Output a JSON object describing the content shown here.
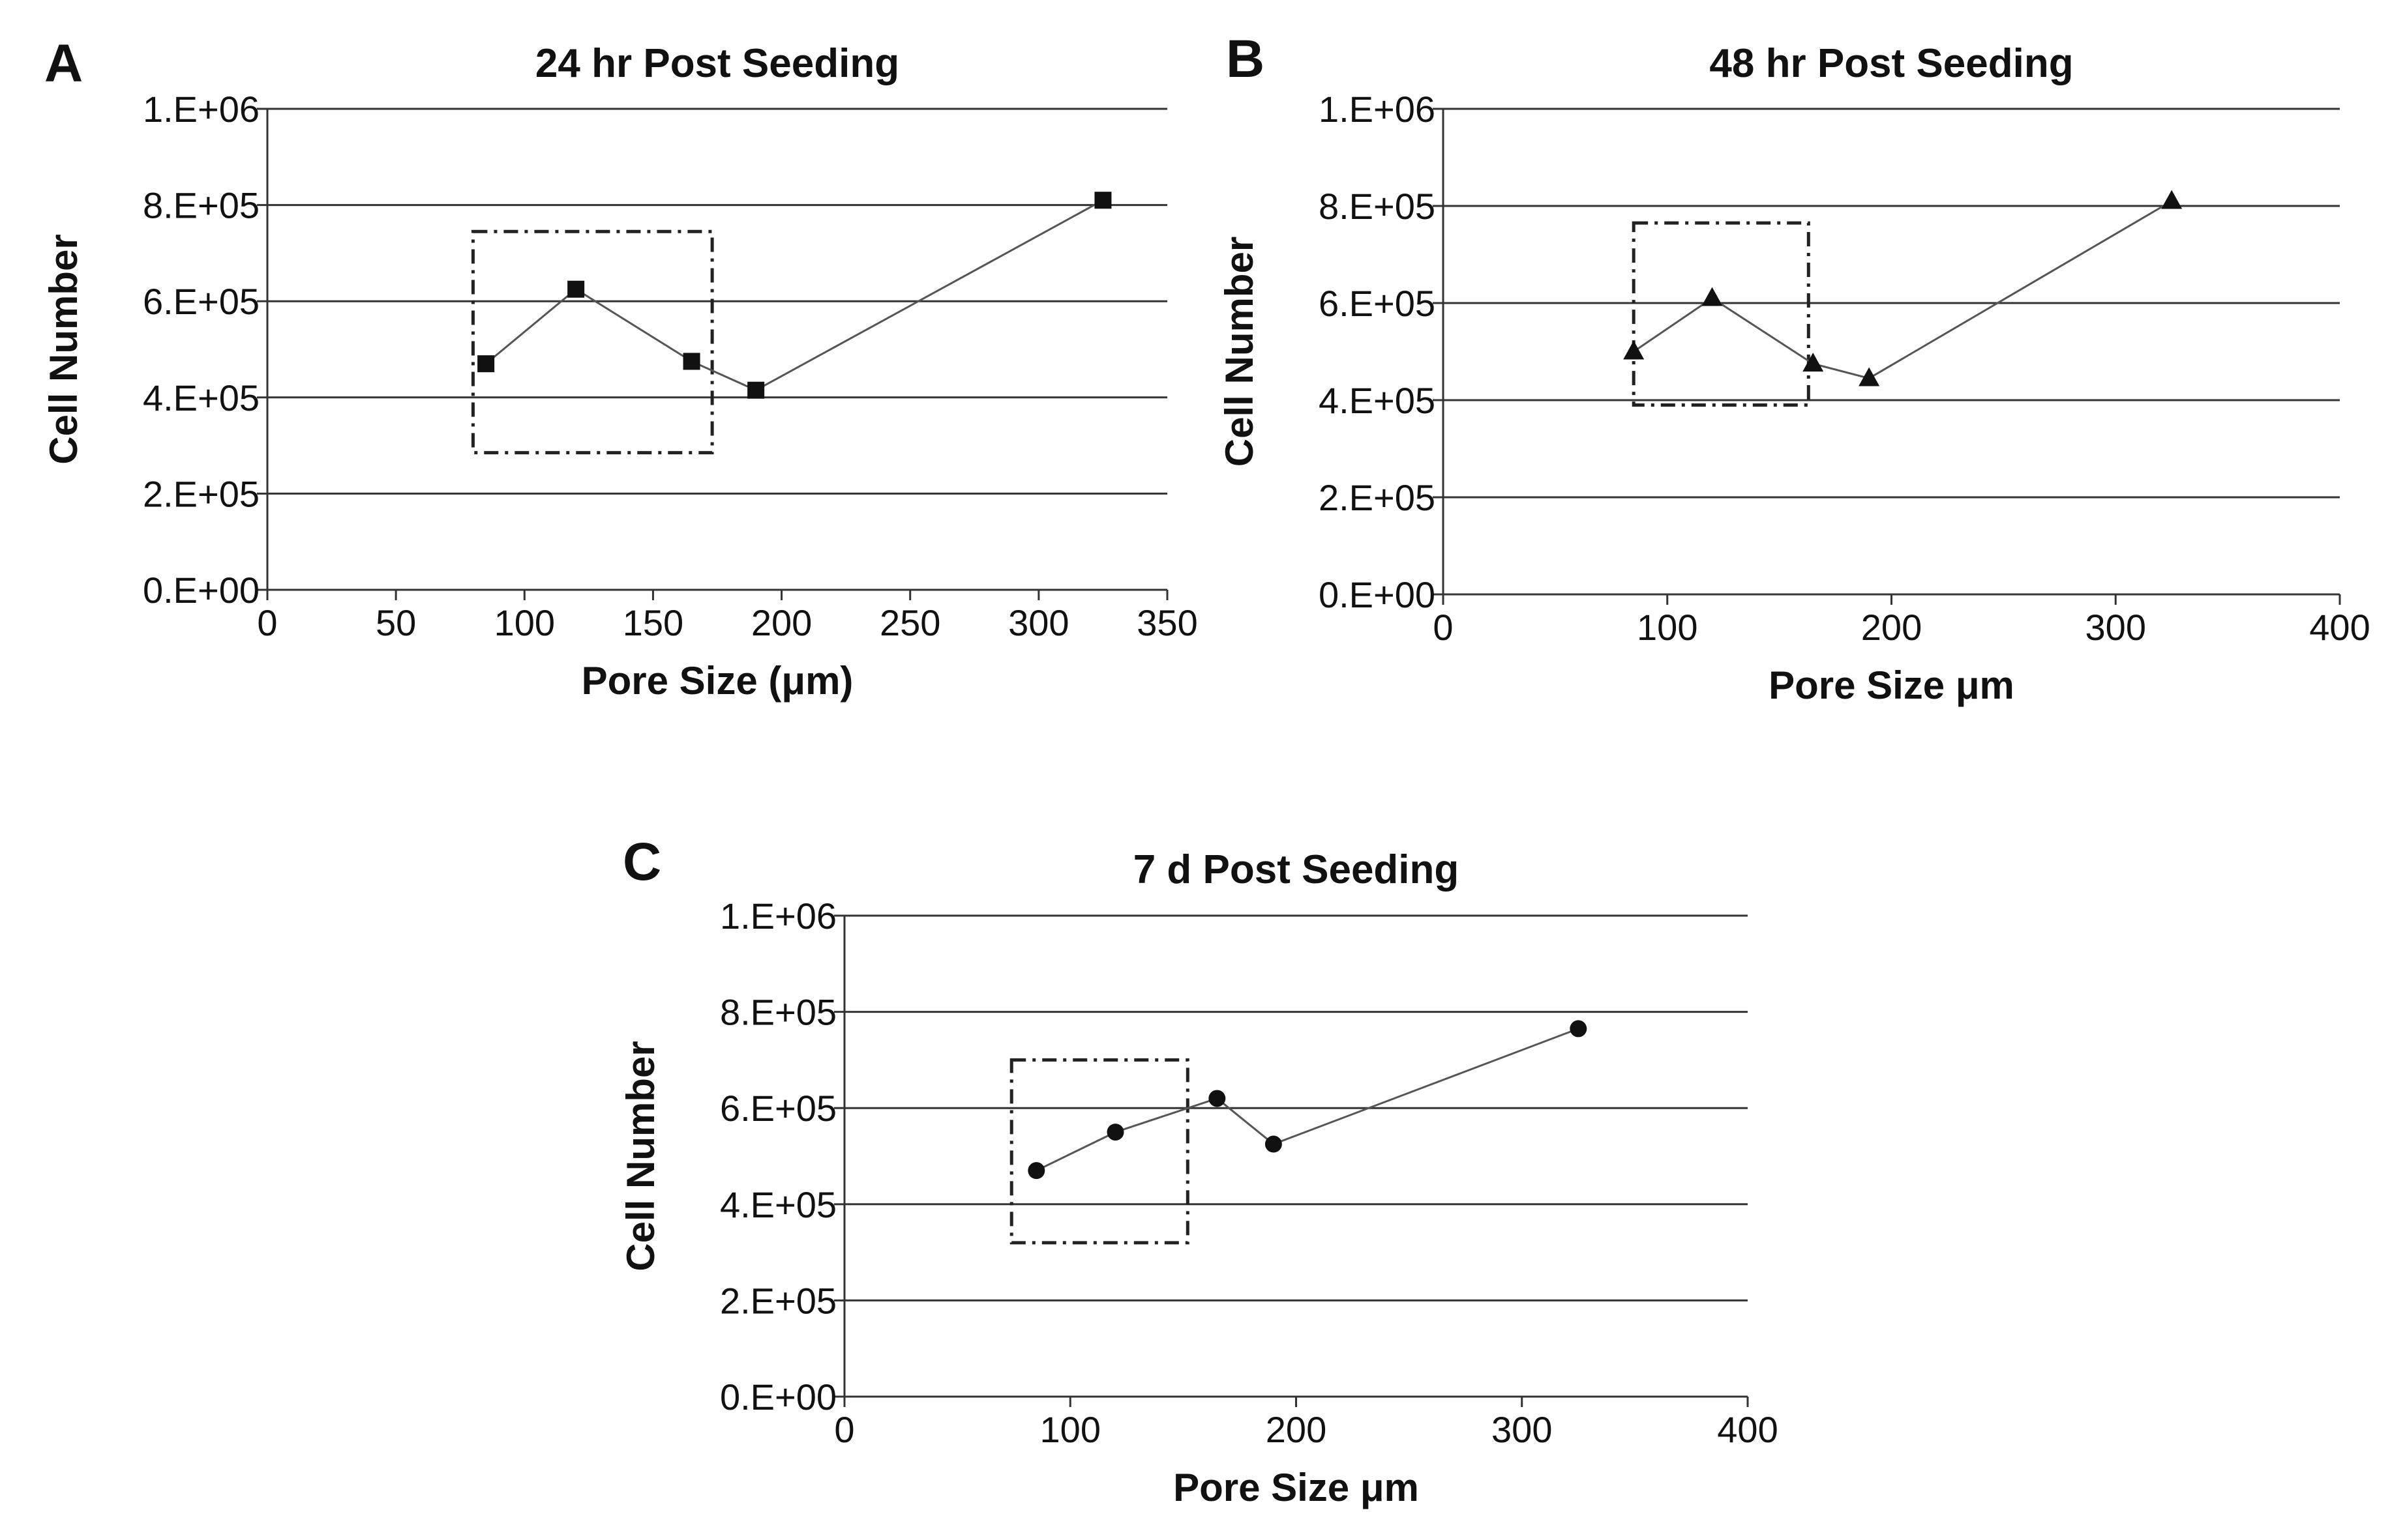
{
  "chart_data": [
    {
      "panel": "A",
      "type": "line",
      "title": "24 hr Post Seeding",
      "xlabel": "Pore Size (μm)",
      "ylabel": "Cell Number",
      "xlim": [
        0,
        350
      ],
      "ylim": [
        0,
        1000000
      ],
      "xticks": [
        0,
        50,
        100,
        150,
        200,
        250,
        300,
        350
      ],
      "yticks": [
        0,
        200000,
        400000,
        600000,
        800000,
        1000000
      ],
      "ytick_labels": [
        "0.E+00",
        "2.E+05",
        "4.E+05",
        "6.E+05",
        "8.E+05",
        "1.E+06"
      ],
      "grid": "horizontal",
      "marker": "square",
      "x": [
        85,
        120,
        165,
        190,
        325
      ],
      "y": [
        470000,
        625000,
        475000,
        415000,
        810000
      ],
      "highlight_box": {
        "x_range": [
          80,
          173
        ],
        "y_range": [
          285000,
          745000
        ],
        "style": "dash-dot"
      }
    },
    {
      "panel": "B",
      "type": "line",
      "title": "48 hr Post Seeding",
      "xlabel": "Pore Size μm",
      "ylabel": "Cell Number",
      "xlim": [
        0,
        400
      ],
      "ylim": [
        0,
        1000000
      ],
      "xticks": [
        0,
        100,
        200,
        300,
        400
      ],
      "yticks": [
        0,
        200000,
        400000,
        600000,
        800000,
        1000000
      ],
      "ytick_labels": [
        "0.E+00",
        "2.E+05",
        "4.E+05",
        "6.E+05",
        "8.E+05",
        "1.E+06"
      ],
      "grid": "horizontal",
      "marker": "triangle",
      "x": [
        85,
        120,
        165,
        190,
        325
      ],
      "y": [
        500000,
        610000,
        475000,
        445000,
        810000
      ],
      "highlight_box": {
        "x_range": [
          85,
          163
        ],
        "y_range": [
          390000,
          765000
        ],
        "style": "dash-dot"
      }
    },
    {
      "panel": "C",
      "type": "line",
      "title": "7 d Post Seeding",
      "xlabel": "Pore Size μm",
      "ylabel": "Cell Number",
      "xlim": [
        0,
        400
      ],
      "ylim": [
        0,
        1000000
      ],
      "xticks": [
        0,
        100,
        200,
        300,
        400
      ],
      "yticks": [
        0,
        200000,
        400000,
        600000,
        800000,
        1000000
      ],
      "ytick_labels": [
        "0.E+00",
        "2.E+05",
        "4.E+05",
        "6.E+05",
        "8.E+05",
        "1.E+06"
      ],
      "grid": "horizontal",
      "marker": "circle",
      "x": [
        85,
        120,
        165,
        190,
        325
      ],
      "y": [
        470000,
        550000,
        620000,
        525000,
        765000
      ],
      "highlight_box": {
        "x_range": [
          74,
          152
        ],
        "y_range": [
          320000,
          700000
        ],
        "style": "dash-dot"
      }
    }
  ]
}
